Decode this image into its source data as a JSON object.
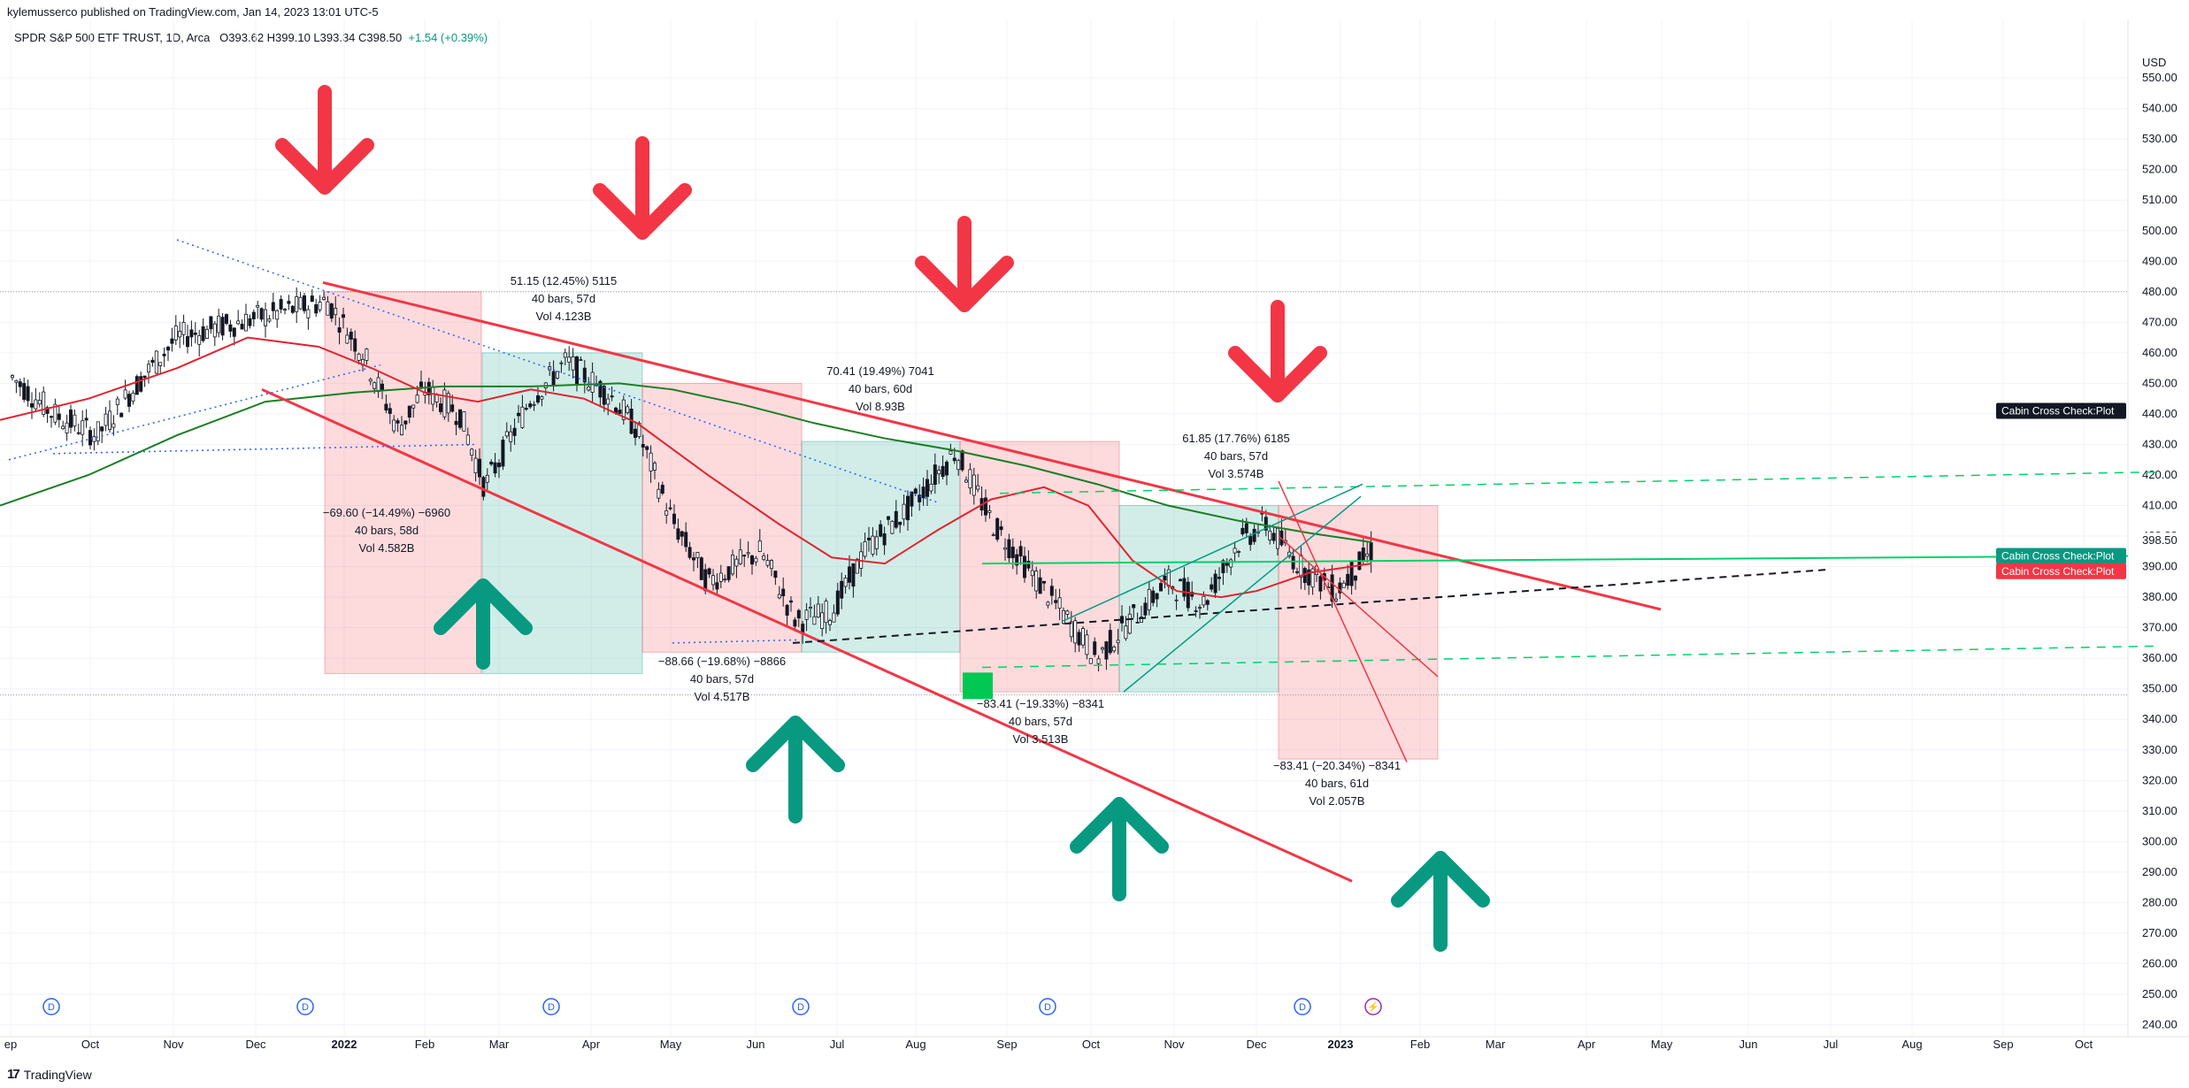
{
  "header": {
    "published": "kylemusserco published on TradingView.com, Jan 14, 2023 13:01 UTC-5",
    "symbol_line": "SPDR S&P 500 ETF TRUST, 1D, Arca",
    "ohlc": "O393.62  H399.10  L393.34  C398.50",
    "change": "+1.54 (+0.39%)"
  },
  "footer": {
    "brand": "TradingView"
  },
  "colors": {
    "red": "#f23645",
    "green": "#089981",
    "ma_red": "#e0242f",
    "ma_green": "#1b7e23",
    "lime": "#00d26a",
    "bg": "#ffffff",
    "grid": "#f0f3fa"
  },
  "price_axis": {
    "unit": "USD",
    "ticks": [
      550,
      540,
      530,
      520,
      510,
      500,
      490,
      480,
      470,
      460,
      450,
      440,
      430,
      420,
      410,
      400,
      390,
      380,
      370,
      360,
      350,
      340,
      330,
      320,
      310,
      300,
      290,
      280,
      270,
      260,
      250,
      240
    ],
    "current_price": "398.50",
    "range": [
      236,
      558
    ]
  },
  "time_axis": [
    "ep",
    "Oct",
    "Nov",
    "Dec",
    "2022",
    "Feb",
    "Mar",
    "Apr",
    "May",
    "Jun",
    "Jul",
    "Aug",
    "Sep",
    "Oct",
    "Nov",
    "Dec",
    "2023",
    "Feb",
    "Mar",
    "Apr",
    "May",
    "Jun",
    "Jul",
    "Aug",
    "Sep",
    "Oct"
  ],
  "dividend_marker": "D",
  "flash_marker": "⚡",
  "labels": [
    {
      "text": "Cabin Cross Check:Plot",
      "price": 441,
      "color": "#131722"
    },
    {
      "text": "Cabin Cross Check:Plot",
      "price": 393.5,
      "color": "#089981"
    },
    {
      "text": "Cabin Cross Check:Plot",
      "price": 388.5,
      "color": "#f23645"
    }
  ],
  "measures": [
    {
      "lines": [
        "51.15 (12.45%) 5115",
        "40 bars, 57d",
        "Vol 4.123B"
      ]
    },
    {
      "lines": [
        "−69.60 (−14.49%) −6960",
        "40 bars, 58d",
        "Vol 4.582B"
      ]
    },
    {
      "lines": [
        "70.41 (19.49%) 7041",
        "40 bars, 60d",
        "Vol 8.93B"
      ]
    },
    {
      "lines": [
        "−88.66 (−19.68%) −8866",
        "40 bars, 57d",
        "Vol 4.517B"
      ]
    },
    {
      "lines": [
        "61.85 (17.76%) 6185",
        "40 bars, 57d",
        "Vol 3.574B"
      ]
    },
    {
      "lines": [
        "−83.41 (−19.33%) −8341",
        "40 bars, 57d",
        "Vol 3.513B"
      ]
    },
    {
      "lines": [
        "−83.41 (−20.34%) −8341",
        "40 bars, 61d",
        "Vol 2.057B"
      ]
    }
  ]
}
